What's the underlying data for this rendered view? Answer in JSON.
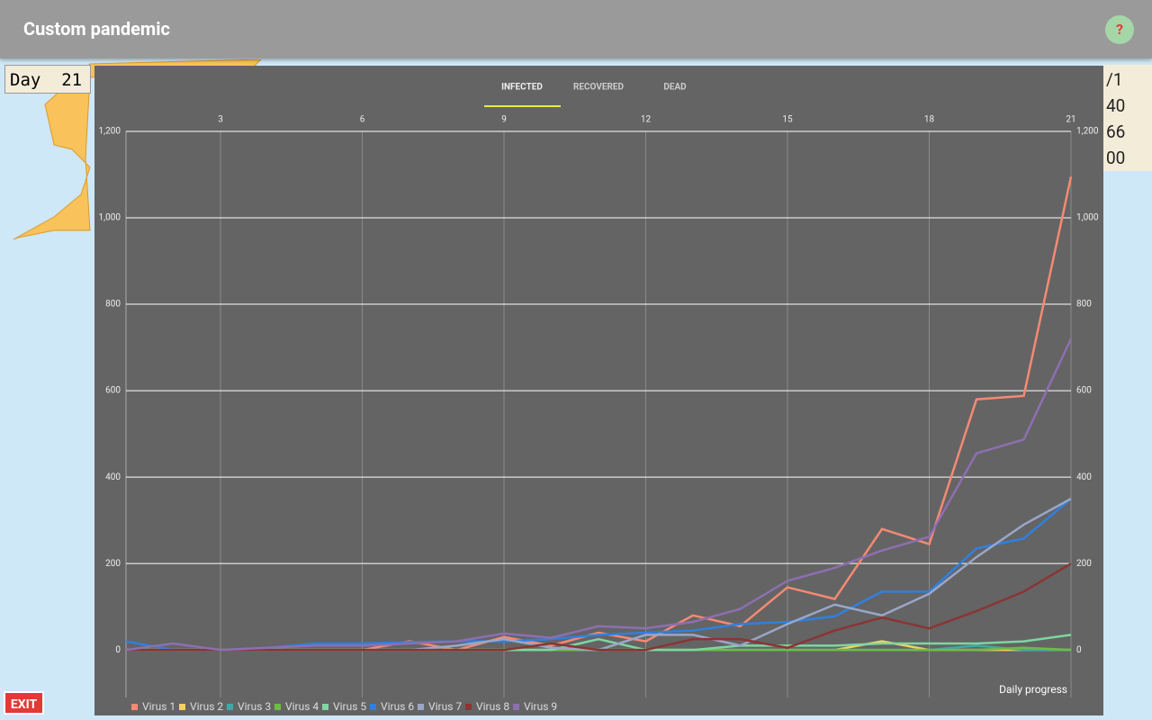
{
  "header": {
    "title": "Custom pandemic",
    "help": "?"
  },
  "left_panel": {
    "day_label": "Day",
    "day_value": "21"
  },
  "right_panel": {
    "stats": [
      "/1",
      "40",
      "66",
      "00"
    ]
  },
  "exit": "EXIT",
  "tabs": [
    "INFECTED",
    "RECOVERED",
    "DEAD"
  ],
  "chart_data": {
    "type": "line",
    "annotation": "Daily progress",
    "x": [
      1,
      2,
      3,
      4,
      5,
      6,
      7,
      8,
      9,
      10,
      11,
      12,
      13,
      14,
      15,
      16,
      17,
      18,
      19,
      20,
      21
    ],
    "xlim": [
      1,
      21
    ],
    "xticks": [
      3,
      6,
      9,
      12,
      15,
      18,
      21
    ],
    "ylim": [
      -110,
      1200
    ],
    "yticks": [
      0,
      200,
      400,
      600,
      800,
      {
        "value": 1000,
        "label": "1,000"
      },
      {
        "value": 1200,
        "label": "1,200"
      }
    ],
    "grid": true,
    "legend": "bottom-left",
    "series": [
      {
        "name": "Virus 1",
        "color": "#f48a73",
        "values": [
          0,
          0,
          0,
          0,
          0,
          0,
          20,
          0,
          30,
          10,
          40,
          20,
          80,
          55,
          145,
          118,
          280,
          245,
          580,
          588,
          1095
        ]
      },
      {
        "name": "Virus 2",
        "color": "#f7d060",
        "values": [
          0,
          0,
          0,
          0,
          0,
          0,
          0,
          0,
          0,
          0,
          0,
          0,
          0,
          0,
          0,
          0,
          20,
          0,
          0,
          0,
          0
        ]
      },
      {
        "name": "Virus 3",
        "color": "#3fa9a9",
        "values": [
          0,
          0,
          0,
          0,
          0,
          0,
          0,
          0,
          0,
          0,
          0,
          0,
          0,
          0,
          0,
          0,
          0,
          0,
          10,
          0,
          0
        ]
      },
      {
        "name": "Virus 4",
        "color": "#6cbd45",
        "values": [
          0,
          0,
          0,
          0,
          0,
          0,
          0,
          0,
          0,
          0,
          0,
          0,
          0,
          0,
          0,
          0,
          0,
          0,
          0,
          5,
          0
        ]
      },
      {
        "name": "Virus 5",
        "color": "#7ed6a0",
        "values": [
          0,
          0,
          0,
          0,
          0,
          0,
          0,
          0,
          0,
          0,
          25,
          0,
          0,
          10,
          10,
          10,
          15,
          15,
          15,
          20,
          35
        ]
      },
      {
        "name": "Virus 6",
        "color": "#2f80e0",
        "values": [
          20,
          0,
          0,
          5,
          15,
          15,
          18,
          20,
          20,
          25,
          35,
          40,
          45,
          60,
          65,
          78,
          135,
          135,
          235,
          258,
          350
        ]
      },
      {
        "name": "Virus 7",
        "color": "#9aa6c8",
        "values": [
          0,
          0,
          0,
          0,
          0,
          0,
          0,
          10,
          25,
          5,
          0,
          35,
          35,
          10,
          60,
          105,
          80,
          130,
          215,
          290,
          350
        ]
      },
      {
        "name": "Virus 8",
        "color": "#8b3434",
        "values": [
          0,
          0,
          0,
          0,
          0,
          0,
          0,
          0,
          0,
          15,
          0,
          0,
          25,
          25,
          5,
          45,
          75,
          50,
          90,
          135,
          200
        ]
      },
      {
        "name": "Virus 9",
        "color": "#8d6fb0",
        "values": [
          0,
          15,
          0,
          5,
          10,
          10,
          15,
          20,
          38,
          28,
          55,
          50,
          65,
          95,
          160,
          190,
          230,
          262,
          455,
          487,
          720
        ]
      }
    ]
  }
}
